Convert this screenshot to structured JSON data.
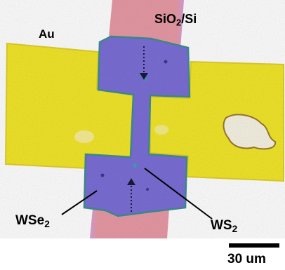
{
  "labels": {
    "electrode": "Au",
    "substrate": "SiO2/Si",
    "material_left": "WSe2",
    "material_right": "WS2"
  },
  "scale_bar": {
    "text": "30 um"
  },
  "colors": {
    "gold": "#f2e62a",
    "substrate_pink": "#e39aa6",
    "flake_blue": "#7b6fd6",
    "background": "#ffffff"
  }
}
